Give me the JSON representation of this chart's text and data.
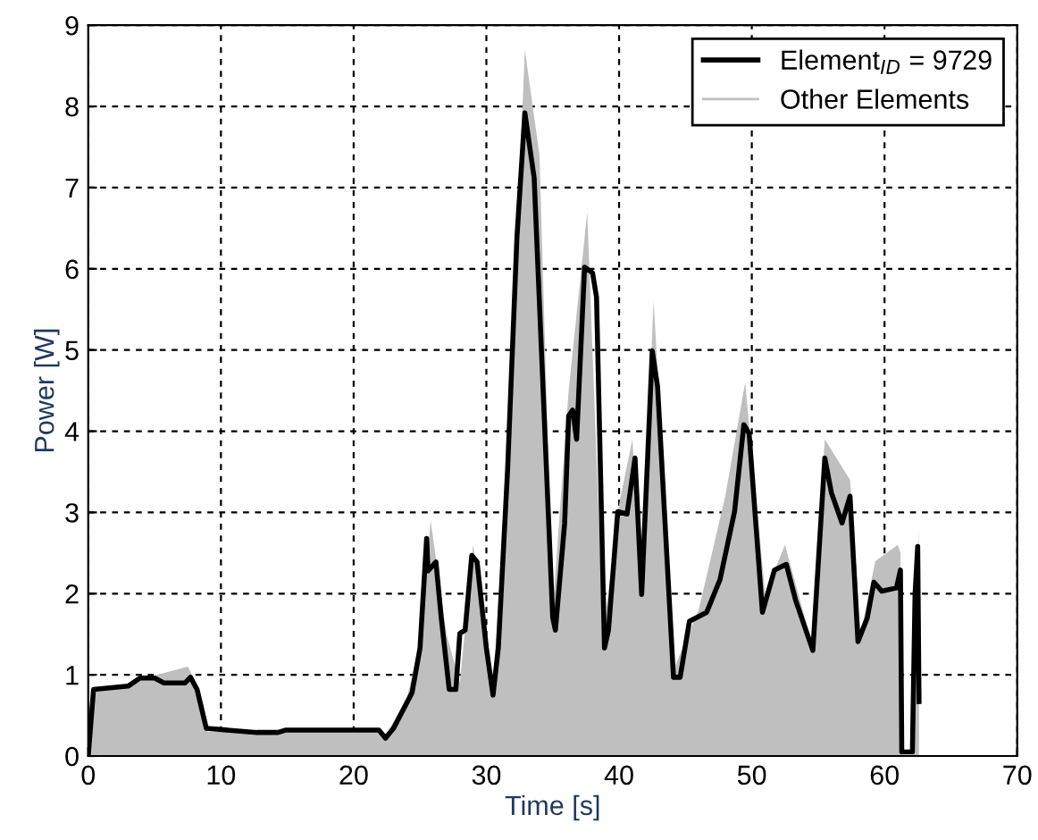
{
  "chart_data": {
    "type": "line",
    "xlabel": "Time [s]",
    "ylabel": "Power [W]",
    "xlim": [
      0,
      70
    ],
    "ylim": [
      0,
      9
    ],
    "xticks": [
      0,
      10,
      20,
      30,
      40,
      50,
      60,
      70
    ],
    "yticks": [
      0,
      1,
      2,
      3,
      4,
      5,
      6,
      7,
      8,
      9
    ],
    "grid": true,
    "legend": "top right",
    "line_style": "solid",
    "marker": "none",
    "series": [
      {
        "name": "Other Elements",
        "type": "area",
        "color": "#bfbfbf",
        "x": [
          0,
          0.3,
          3,
          4,
          7.5,
          8.3,
          9,
          22,
          22.4,
          24,
          25,
          25.8,
          27,
          28,
          29,
          30.5,
          31.6,
          32.9,
          34,
          35,
          36.2,
          37.6,
          38.8,
          40,
          41,
          41.7,
          42.6,
          44.2,
          46,
          48,
          49.5,
          51,
          52.5,
          54.5,
          55.5,
          57.4,
          58.2,
          59.3,
          61,
          61.2,
          61.3,
          62.1,
          62.6,
          62.6
        ],
        "values": [
          0,
          0.8,
          0.85,
          0.95,
          1.1,
          0.85,
          0.3,
          0.3,
          0.25,
          0.7,
          1.4,
          2.9,
          1.5,
          0.9,
          2.6,
          0.9,
          3.6,
          8.7,
          7.4,
          1.8,
          4.5,
          6.7,
          1.5,
          3.1,
          3.9,
          2.1,
          5.6,
          1.1,
          1.8,
          3.2,
          4.6,
          2.0,
          2.6,
          1.4,
          3.9,
          3.4,
          1.5,
          2.4,
          2.6,
          2.5,
          0,
          0,
          2.8,
          0
        ]
      },
      {
        "name": "Element$_{ID}$ = 9729",
        "color": "#000000",
        "x": [
          0,
          0.4,
          3.0,
          3.9,
          5.0,
          5.7,
          7.3,
          7.7,
          8.2,
          8.9,
          12.7,
          14.3,
          14.9,
          21.9,
          22.4,
          23.0,
          24.4,
          25.0,
          25.5,
          25.6,
          26.2,
          26.6,
          27.2,
          27.7,
          28.0,
          28.4,
          28.9,
          29.3,
          30.0,
          30.5,
          30.9,
          31.6,
          32.3,
          32.9,
          33.6,
          35.0,
          35.2,
          35.9,
          36.2,
          36.5,
          36.8,
          37.4,
          38.0,
          38.3,
          38.9,
          39.2,
          39.9,
          40.6,
          41.2,
          41.7,
          42.5,
          42.9,
          44.1,
          44.6,
          45.3,
          46.6,
          47.6,
          48.7,
          49.4,
          49.8,
          50.8,
          51.7,
          52.6,
          53.3,
          54.6,
          55.5,
          56.0,
          56.8,
          57.4,
          58.0,
          58.7,
          59.2,
          59.8,
          60.9,
          61.2,
          61.3,
          62.1,
          62.3,
          62.5,
          62.6
        ],
        "values": [
          0,
          0.82,
          0.86,
          0.96,
          0.96,
          0.9,
          0.9,
          0.97,
          0.82,
          0.34,
          0.29,
          0.29,
          0.32,
          0.32,
          0.22,
          0.34,
          0.78,
          1.33,
          2.68,
          2.28,
          2.39,
          1.7,
          0.82,
          0.82,
          1.51,
          1.55,
          2.47,
          2.39,
          1.33,
          0.75,
          1.33,
          3.53,
          6.38,
          7.92,
          7.12,
          1.7,
          1.55,
          2.87,
          4.19,
          4.26,
          3.9,
          6.02,
          5.95,
          5.65,
          1.33,
          1.55,
          3.01,
          2.98,
          3.67,
          1.99,
          4.99,
          4.55,
          0.97,
          0.97,
          1.66,
          1.77,
          2.17,
          3.01,
          4.08,
          3.97,
          1.77,
          2.29,
          2.36,
          1.92,
          1.3,
          3.67,
          3.24,
          2.87,
          3.2,
          1.41,
          1.7,
          2.14,
          2.03,
          2.07,
          2.29,
          0.05,
          0.05,
          1.99,
          2.58,
          0.67
        ]
      }
    ]
  }
}
